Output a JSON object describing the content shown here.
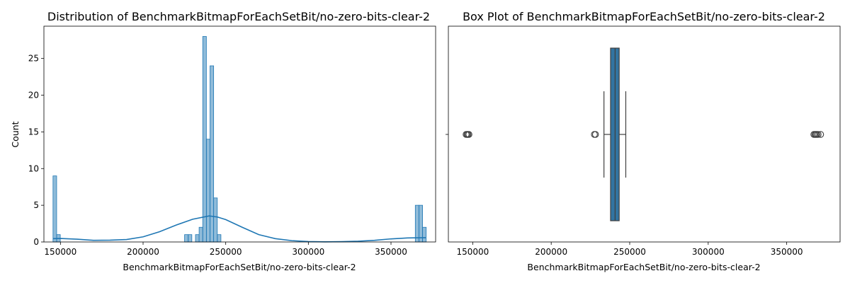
{
  "chart_data": [
    {
      "type": "histogram",
      "title": "Distribution of BenchmarkBitmapForEachSetBit/no-zero-bits-clear-2",
      "xlabel": "BenchmarkBitmapForEachSetBit/no-zero-bits-clear-2",
      "ylabel": "Count",
      "xlim": [
        140000,
        377000
      ],
      "ylim": [
        0,
        29.4
      ],
      "xticks": [
        150000,
        200000,
        250000,
        300000,
        350000
      ],
      "yticks": [
        0,
        5,
        10,
        15,
        20,
        25
      ],
      "bin_width": 2200,
      "bins": [
        {
          "x0": 145500,
          "count": 9
        },
        {
          "x0": 147700,
          "count": 1
        },
        {
          "x0": 225100,
          "count": 1
        },
        {
          "x0": 227300,
          "count": 1
        },
        {
          "x0": 231700,
          "count": 1
        },
        {
          "x0": 233900,
          "count": 2
        },
        {
          "x0": 236100,
          "count": 28
        },
        {
          "x0": 238300,
          "count": 14
        },
        {
          "x0": 240500,
          "count": 24
        },
        {
          "x0": 242700,
          "count": 6
        },
        {
          "x0": 244900,
          "count": 1
        },
        {
          "x0": 364700,
          "count": 5
        },
        {
          "x0": 366900,
          "count": 5
        },
        {
          "x0": 369100,
          "count": 2
        }
      ],
      "kde": {
        "x": [
          145500,
          150000,
          160000,
          170000,
          180000,
          190000,
          200000,
          210000,
          220000,
          230000,
          240000,
          245000,
          250000,
          260000,
          270000,
          280000,
          290000,
          300000,
          310000,
          320000,
          330000,
          340000,
          350000,
          360000,
          371000
        ],
        "y": [
          0.45,
          0.48,
          0.38,
          0.22,
          0.25,
          0.33,
          0.7,
          1.4,
          2.3,
          3.1,
          3.55,
          3.4,
          3.05,
          2.0,
          1.0,
          0.45,
          0.18,
          0.05,
          0.02,
          0.04,
          0.1,
          0.22,
          0.42,
          0.55,
          0.58
        ]
      }
    },
    {
      "type": "box",
      "title": "Box Plot of BenchmarkBitmapForEachSetBit/no-zero-bits-clear-2",
      "xlabel": "BenchmarkBitmapForEachSetBit/no-zero-bits-clear-2",
      "xlim": [
        134500,
        384000
      ],
      "xticks": [
        150000,
        200000,
        250000,
        300000,
        350000
      ],
      "q1": 237800,
      "median": 240700,
      "q3": 243300,
      "whisker_low": 233600,
      "whisker_high": 247500,
      "outliers": [
        145800,
        146400,
        147000,
        147600,
        227500,
        228200,
        367300,
        368000,
        368600,
        369200,
        370000,
        371600
      ]
    }
  ]
}
